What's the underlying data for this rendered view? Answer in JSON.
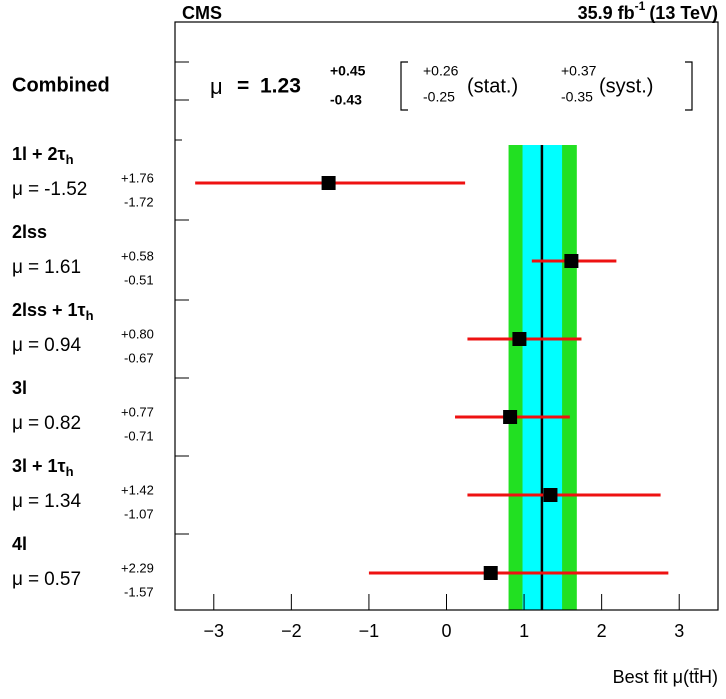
{
  "chart_data": {
    "type": "forest",
    "experiment": "CMS",
    "lumi": {
      "value": "35.9 fb",
      "sup": "-1",
      "energy": "(13 TeV)"
    },
    "x_label": "Best fit μ(tt̄H)",
    "mu_symbol": "μ",
    "equals": "=",
    "xlim": [
      -3.5,
      3.5
    ],
    "xticks": [
      {
        "value": -3,
        "label": "−3"
      },
      {
        "value": -2,
        "label": "−2"
      },
      {
        "value": -1,
        "label": "−1"
      },
      0,
      1,
      2,
      3
    ],
    "combined": {
      "name": "Combined",
      "value": 1.23,
      "err_up": 0.45,
      "err_up_label": "+0.45",
      "err_down": -0.43,
      "stat_up": 0.26,
      "stat_up_label": "+0.26",
      "stat_down": -0.25,
      "stat_text": "(stat.)",
      "syst_up": 0.37,
      "syst_up_label": "+0.37",
      "syst_down": -0.35,
      "syst_text": "(syst.)",
      "total_color": "#22e022",
      "stat_color": "#00ffff",
      "line_color": "#000000"
    },
    "marker_color": "#000000",
    "bar_color": "#ee1111",
    "channels": [
      {
        "name": [
          "1l + 2τ",
          "h"
        ],
        "value": -1.52,
        "err_up": 1.76,
        "err_up_label": "+1.76",
        "err_down": -1.72
      },
      {
        "name": [
          "2lss"
        ],
        "value": 1.61,
        "err_up": 0.58,
        "err_up_label": "+0.58",
        "err_down": -0.51
      },
      {
        "name": [
          "2lss + 1τ",
          "h"
        ],
        "value": 0.94,
        "err_up": 0.8,
        "err_up_label": "+0.80",
        "err_down": -0.67
      },
      {
        "name": [
          "3l"
        ],
        "value": 0.82,
        "err_up": 0.77,
        "err_up_label": "+0.77",
        "err_down": -0.71
      },
      {
        "name": [
          "3l + 1τ",
          "h"
        ],
        "value": 1.34,
        "err_up": 1.42,
        "err_up_label": "+1.42",
        "err_down": -1.07
      },
      {
        "name": [
          "4l"
        ],
        "value": 0.57,
        "err_up": 2.29,
        "err_up_label": "+2.29",
        "err_down": -1.57
      }
    ]
  }
}
